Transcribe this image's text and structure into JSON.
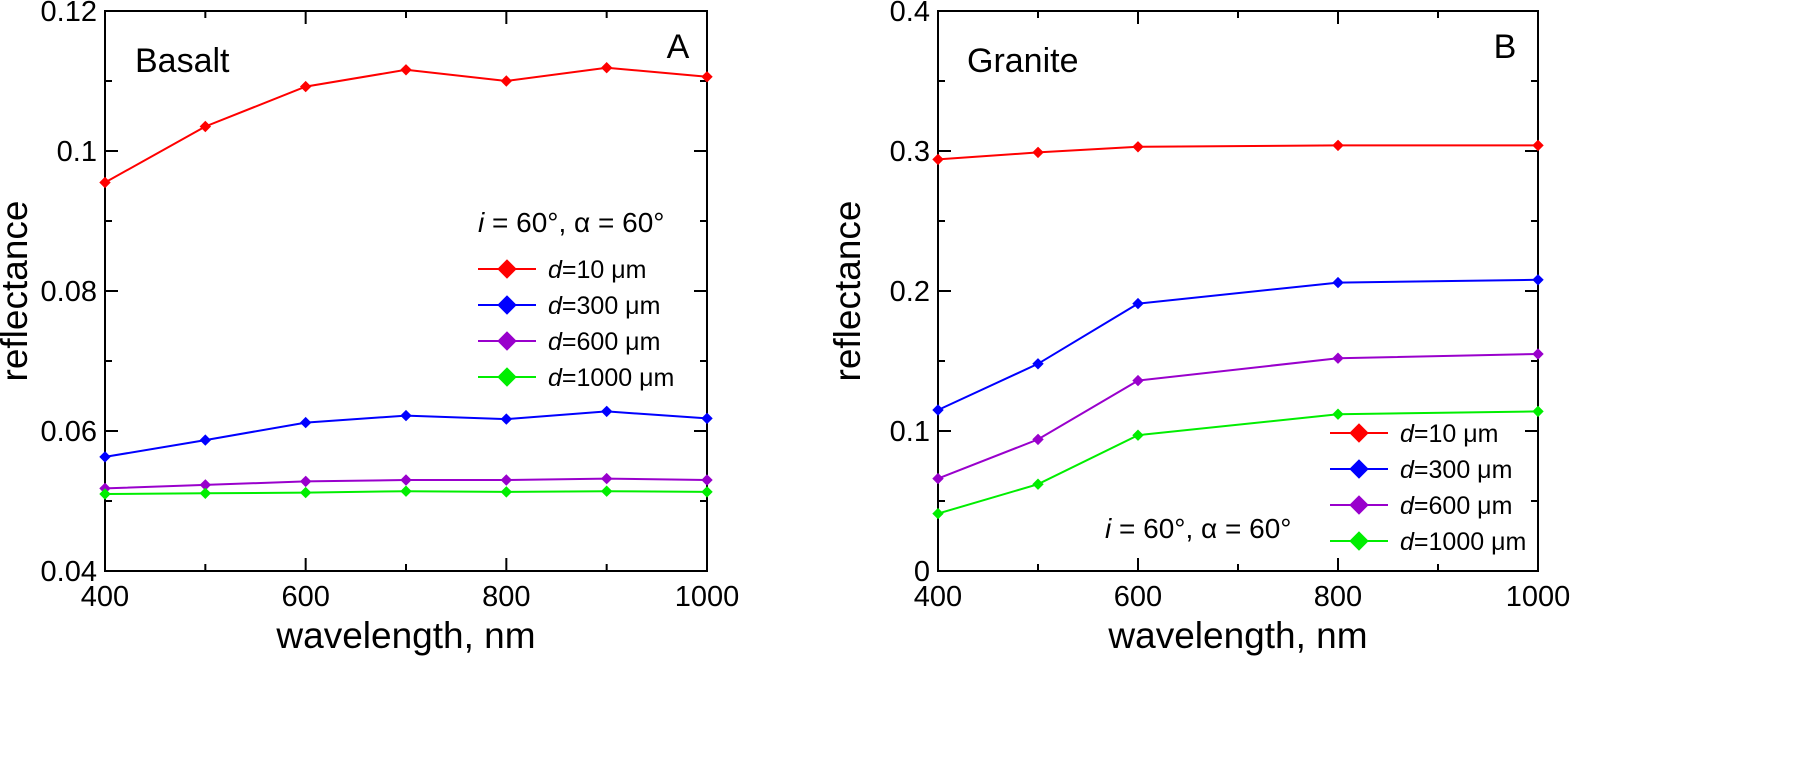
{
  "chart_data": [
    {
      "type": "line",
      "panel": "A",
      "title": "Basalt",
      "xlabel": "wavelength, nm",
      "ylabel": "reflectance",
      "xlim": [
        400,
        1000
      ],
      "ylim": [
        0.04,
        0.12
      ],
      "xticks": [
        400,
        600,
        800,
        1000
      ],
      "xtick_labels": [
        "400",
        "600",
        "800",
        "1000"
      ],
      "yticks": [
        0.04,
        0.06,
        0.08,
        0.1,
        0.12
      ],
      "ytick_labels": [
        "0.04",
        "0.06",
        "0.08",
        "0.1",
        "0.12"
      ],
      "legend_position": "middle-right",
      "condition": {
        "i_symbol": "i",
        "alpha_symbol": "α",
        "text_i": " = 60°, ",
        "text_alpha": " = 60°"
      },
      "series": [
        {
          "d_symbol": "d",
          "name_rest": "=10 μm",
          "color": "#ff0000",
          "x": [
            400,
            500,
            600,
            700,
            800,
            900,
            1000
          ],
          "values": [
            0.0955,
            0.1035,
            0.1092,
            0.1116,
            0.11,
            0.1119,
            0.1106
          ]
        },
        {
          "d_symbol": "d",
          "name_rest": "=300 μm",
          "color": "#0000ff",
          "x": [
            400,
            500,
            600,
            700,
            800,
            900,
            1000
          ],
          "values": [
            0.0563,
            0.0587,
            0.0612,
            0.0622,
            0.0617,
            0.0628,
            0.0618
          ]
        },
        {
          "d_symbol": "d",
          "name_rest": "=600 μm",
          "color": "#9900cc",
          "x": [
            400,
            500,
            600,
            700,
            800,
            900,
            1000
          ],
          "values": [
            0.0518,
            0.0523,
            0.0528,
            0.053,
            0.053,
            0.0532,
            0.053
          ]
        },
        {
          "d_symbol": "d",
          "name_rest": "=1000 μm",
          "color": "#00ee00",
          "x": [
            400,
            500,
            600,
            700,
            800,
            900,
            1000
          ],
          "values": [
            0.051,
            0.0511,
            0.0512,
            0.0514,
            0.0513,
            0.0514,
            0.0513
          ]
        }
      ]
    },
    {
      "type": "line",
      "panel": "B",
      "title": "Granite",
      "xlabel": "wavelength, nm",
      "ylabel": "reflectance",
      "xlim": [
        400,
        1000
      ],
      "ylim": [
        0,
        0.4
      ],
      "xticks": [
        400,
        600,
        800,
        1000
      ],
      "xtick_labels": [
        "400",
        "600",
        "800",
        "1000"
      ],
      "yticks": [
        0,
        0.1,
        0.2,
        0.3,
        0.4
      ],
      "ytick_labels": [
        "0",
        "0.1",
        "0.2",
        "0.3",
        "0.4"
      ],
      "legend_position": "bottom-right",
      "condition": {
        "i_symbol": "i",
        "alpha_symbol": "α",
        "text_i": " = 60°, ",
        "text_alpha": " = 60°"
      },
      "series": [
        {
          "d_symbol": "d",
          "name_rest": "=10 μm",
          "color": "#ff0000",
          "x": [
            400,
            500,
            600,
            800,
            1000
          ],
          "values": [
            0.294,
            0.299,
            0.303,
            0.304,
            0.304
          ]
        },
        {
          "d_symbol": "d",
          "name_rest": "=300 μm",
          "color": "#0000ff",
          "x": [
            400,
            500,
            600,
            800,
            1000
          ],
          "values": [
            0.115,
            0.148,
            0.191,
            0.206,
            0.208
          ]
        },
        {
          "d_symbol": "d",
          "name_rest": "=600 μm",
          "color": "#9900cc",
          "x": [
            400,
            500,
            600,
            800,
            1000
          ],
          "values": [
            0.066,
            0.094,
            0.136,
            0.152,
            0.155
          ]
        },
        {
          "d_symbol": "d",
          "name_rest": "=1000 μm",
          "color": "#00ee00",
          "x": [
            400,
            500,
            600,
            800,
            1000
          ],
          "values": [
            0.041,
            0.062,
            0.097,
            0.112,
            0.114
          ]
        }
      ]
    }
  ]
}
